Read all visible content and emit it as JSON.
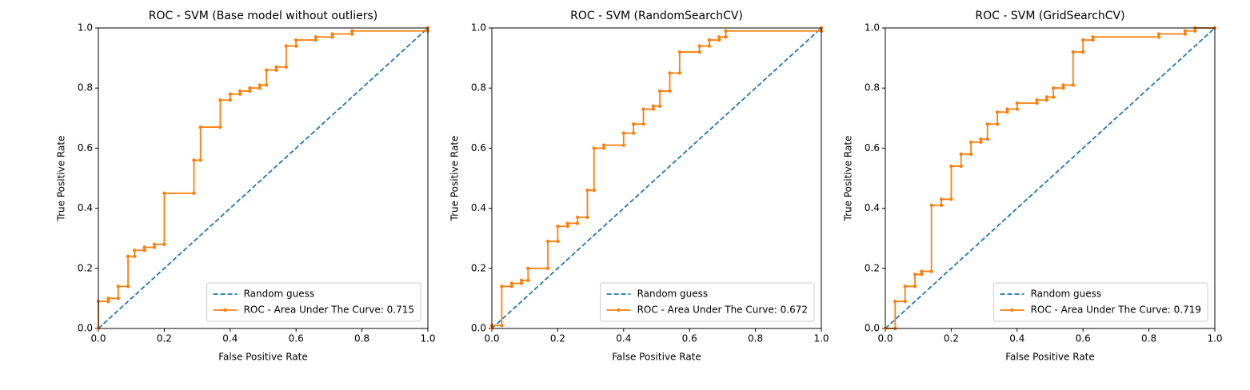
{
  "chart_data": [
    {
      "type": "line",
      "title": "ROC - SVM (Base model without outliers)",
      "x_label": "False Positive Rate",
      "y_label": "True Positive Rate",
      "xlim": [
        0,
        1
      ],
      "ylim": [
        0,
        1
      ],
      "xticks": [
        {
          "value": 0,
          "label": "0.0"
        },
        0.2,
        0.4,
        0.6,
        0.8,
        {
          "value": 1,
          "label": "1.0"
        }
      ],
      "yticks": [
        {
          "value": 0,
          "label": "0.0"
        },
        0.2,
        0.4,
        0.6,
        0.8,
        {
          "value": 1,
          "label": "1.0"
        }
      ],
      "legend": "lower right",
      "series": [
        {
          "name": "Random guess",
          "color": "#1f77b4",
          "linestyle": "dashed",
          "x": [
            0,
            1
          ],
          "values": [
            0,
            1
          ]
        },
        {
          "name": "ROC - Area Under The Curve: 0.715",
          "color": "#ff7f0e",
          "linestyle": "solid",
          "marker": "dot",
          "x": [
            0,
            0,
            0.03,
            0.03,
            0.06,
            0.06,
            0.09,
            0.09,
            0.11,
            0.11,
            0.14,
            0.14,
            0.17,
            0.17,
            0.2,
            0.2,
            0.29,
            0.29,
            0.31,
            0.31,
            0.37,
            0.37,
            0.4,
            0.4,
            0.43,
            0.43,
            0.46,
            0.46,
            0.49,
            0.49,
            0.51,
            0.51,
            0.54,
            0.54,
            0.57,
            0.57,
            0.6,
            0.6,
            0.66,
            0.66,
            0.71,
            0.71,
            0.77,
            0.77,
            1,
            1
          ],
          "values": [
            0,
            0.09,
            0.09,
            0.1,
            0.1,
            0.14,
            0.14,
            0.24,
            0.24,
            0.26,
            0.26,
            0.27,
            0.27,
            0.28,
            0.28,
            0.45,
            0.45,
            0.56,
            0.56,
            0.67,
            0.67,
            0.76,
            0.76,
            0.78,
            0.78,
            0.79,
            0.79,
            0.8,
            0.8,
            0.81,
            0.81,
            0.86,
            0.86,
            0.87,
            0.87,
            0.94,
            0.94,
            0.96,
            0.96,
            0.97,
            0.97,
            0.98,
            0.98,
            0.99,
            0.99,
            1
          ]
        }
      ]
    },
    {
      "type": "line",
      "title": "ROC - SVM (RandomSearchCV)",
      "x_label": "False Positive Rate",
      "y_label": "True Positive Rate",
      "xlim": [
        0,
        1
      ],
      "ylim": [
        0,
        1
      ],
      "xticks": [
        {
          "value": 0,
          "label": "0.0"
        },
        0.2,
        0.4,
        0.6,
        0.8,
        {
          "value": 1,
          "label": "1.0"
        }
      ],
      "yticks": [
        {
          "value": 0,
          "label": "0.0"
        },
        0.2,
        0.4,
        0.6,
        0.8,
        {
          "value": 1,
          "label": "1.0"
        }
      ],
      "legend": "lower right",
      "series": [
        {
          "name": "Random guess",
          "color": "#1f77b4",
          "linestyle": "dashed",
          "x": [
            0,
            1
          ],
          "values": [
            0,
            1
          ]
        },
        {
          "name": "ROC - Area Under The Curve: 0.672",
          "color": "#ff7f0e",
          "linestyle": "solid",
          "marker": "dot",
          "x": [
            0,
            0,
            0.03,
            0.03,
            0.06,
            0.06,
            0.09,
            0.09,
            0.11,
            0.11,
            0.17,
            0.17,
            0.2,
            0.2,
            0.23,
            0.23,
            0.26,
            0.26,
            0.29,
            0.29,
            0.31,
            0.31,
            0.34,
            0.34,
            0.4,
            0.4,
            0.43,
            0.43,
            0.46,
            0.46,
            0.49,
            0.49,
            0.51,
            0.51,
            0.54,
            0.54,
            0.57,
            0.57,
            0.63,
            0.63,
            0.66,
            0.66,
            0.69,
            0.69,
            0.71,
            0.71,
            1,
            1
          ],
          "values": [
            0,
            0.01,
            0.01,
            0.14,
            0.14,
            0.15,
            0.15,
            0.16,
            0.16,
            0.2,
            0.2,
            0.29,
            0.29,
            0.34,
            0.34,
            0.35,
            0.35,
            0.37,
            0.37,
            0.46,
            0.46,
            0.6,
            0.6,
            0.61,
            0.61,
            0.65,
            0.65,
            0.68,
            0.68,
            0.73,
            0.73,
            0.74,
            0.74,
            0.79,
            0.79,
            0.85,
            0.85,
            0.92,
            0.92,
            0.94,
            0.94,
            0.96,
            0.96,
            0.97,
            0.97,
            0.99,
            0.99,
            1
          ]
        }
      ]
    },
    {
      "type": "line",
      "title": "ROC - SVM (GridSearchCV)",
      "x_label": "False Positive Rate",
      "y_label": "True Positive Rate",
      "xlim": [
        0,
        1
      ],
      "ylim": [
        0,
        1
      ],
      "xticks": [
        {
          "value": 0,
          "label": "0.0"
        },
        0.2,
        0.4,
        0.6,
        0.8,
        {
          "value": 1,
          "label": "1.0"
        }
      ],
      "yticks": [
        {
          "value": 0,
          "label": "0.0"
        },
        0.2,
        0.4,
        0.6,
        0.8,
        {
          "value": 1,
          "label": "1.0"
        }
      ],
      "legend": "lower right",
      "series": [
        {
          "name": "Random guess",
          "color": "#1f77b4",
          "linestyle": "dashed",
          "x": [
            0,
            1
          ],
          "values": [
            0,
            1
          ]
        },
        {
          "name": "ROC - Area Under The Curve: 0.719",
          "color": "#ff7f0e",
          "linestyle": "solid",
          "marker": "dot",
          "x": [
            0,
            0.03,
            0.03,
            0.06,
            0.06,
            0.09,
            0.09,
            0.11,
            0.11,
            0.14,
            0.14,
            0.17,
            0.17,
            0.2,
            0.2,
            0.23,
            0.23,
            0.26,
            0.26,
            0.29,
            0.29,
            0.31,
            0.31,
            0.34,
            0.34,
            0.37,
            0.37,
            0.4,
            0.4,
            0.46,
            0.46,
            0.49,
            0.49,
            0.51,
            0.51,
            0.54,
            0.54,
            0.57,
            0.57,
            0.6,
            0.6,
            0.63,
            0.63,
            0.83,
            0.83,
            0.91,
            0.91,
            0.94,
            0.94,
            1
          ],
          "values": [
            0,
            0,
            0.09,
            0.09,
            0.14,
            0.14,
            0.18,
            0.18,
            0.19,
            0.19,
            0.41,
            0.41,
            0.43,
            0.43,
            0.54,
            0.54,
            0.58,
            0.58,
            0.62,
            0.62,
            0.63,
            0.63,
            0.68,
            0.68,
            0.72,
            0.72,
            0.73,
            0.73,
            0.75,
            0.75,
            0.76,
            0.76,
            0.77,
            0.77,
            0.8,
            0.8,
            0.81,
            0.81,
            0.92,
            0.92,
            0.96,
            0.96,
            0.97,
            0.97,
            0.98,
            0.98,
            0.99,
            0.99,
            1,
            1
          ]
        }
      ]
    }
  ]
}
